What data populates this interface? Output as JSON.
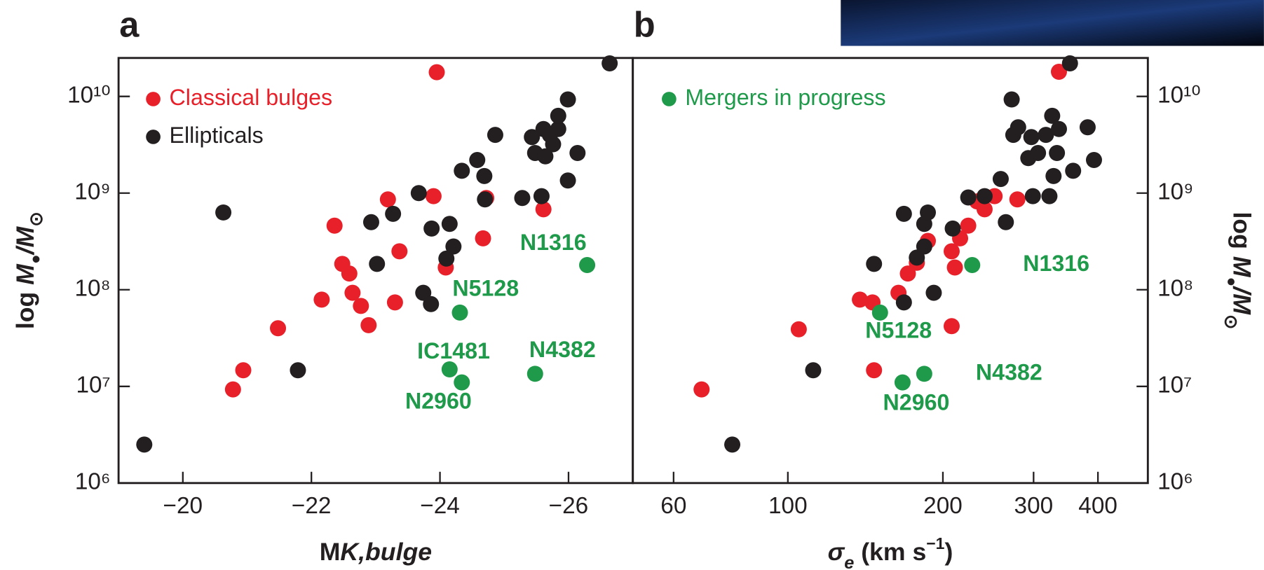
{
  "chart_data": [
    {
      "type": "scatter",
      "panel": "a",
      "xscale": "linear",
      "yscale": "log",
      "xlabel": [
        "M",
        "K,bulge"
      ],
      "ylabel": [
        "log ",
        "M",
        "●",
        "/M",
        "⊙"
      ],
      "xlim": [
        -19,
        -27
      ],
      "ylim": [
        1000000.0,
        25000000000.0
      ],
      "xticks": [
        {
          "value": -20,
          "label": "−20"
        },
        {
          "value": -22,
          "label": "−22"
        },
        {
          "value": -24,
          "label": "−24"
        },
        {
          "value": -26,
          "label": "−26"
        }
      ],
      "yticks": [
        {
          "value": 1000000.0,
          "label": "10⁶"
        },
        {
          "value": 10000000.0,
          "label": "10⁷"
        },
        {
          "value": 100000000.0,
          "label": "10⁸"
        },
        {
          "value": 1000000000.0,
          "label": "10⁹"
        },
        {
          "value": 10000000000.0,
          "label": "10¹⁰"
        }
      ],
      "series": [
        {
          "name": "Classical bulges",
          "color": "#e8202a",
          "x": [
            -23.95,
            -23.9,
            -23.19,
            -22.36,
            -23.37,
            -24.67,
            -22.48,
            -22.59,
            -22.64,
            -22.77,
            -22.16,
            -23.3,
            -22.89,
            -21.48,
            -24.09,
            -20.94,
            -20.78,
            -25.61,
            -24.72
          ],
          "y": [
            17800000000.0,
            930000000.0,
            860000000.0,
            460000000.0,
            250000000.0,
            340000000.0,
            185000000.0,
            147000000.0,
            93000000.0,
            68000000.0,
            79000000.0,
            74000000.0,
            43000000.0,
            40000000.0,
            170000000.0,
            14700000.0,
            9300000.0,
            680000000.0,
            890000000.0
          ]
        },
        {
          "name": "Ellipticals",
          "color": "#231f20",
          "x": [
            -19.4,
            -20.63,
            -21.79,
            -22.93,
            -23.27,
            -23.02,
            -23.67,
            -23.74,
            -23.86,
            -23.87,
            -24.15,
            -24.1,
            -24.21,
            -24.34,
            -24.58,
            -24.69,
            -24.7,
            -24.86,
            -25.28,
            -25.43,
            -25.61,
            -25.48,
            -25.71,
            -25.64,
            -25.84,
            -25.76,
            -25.58,
            -25.84,
            -25.99,
            -25.99,
            -26.14,
            -26.64
          ],
          "y": [
            2500000.0,
            630000000.0,
            14700000.0,
            500000000.0,
            610000000.0,
            185000000.0,
            1000000000.0,
            93000000.0,
            71000000.0,
            430000000.0,
            480000000.0,
            210000000.0,
            280000000.0,
            1700000000.0,
            2200000000.0,
            1500000000.0,
            860000000.0,
            4000000000.0,
            890000000.0,
            3800000000.0,
            4600000000.0,
            2600000000.0,
            4000000000.0,
            2400000000.0,
            4600000000.0,
            3200000000.0,
            930000000.0,
            6300000000.0,
            9300000000.0,
            1350000000.0,
            2600000000.0,
            22000000000.0
          ]
        },
        {
          "color": "#1f9a4a",
          "labels": [
            "N5128",
            "IC1481",
            "N2960",
            "N4382",
            "N1316"
          ],
          "x": [
            -24.31,
            -24.15,
            -24.34,
            -25.48,
            -26.29
          ],
          "y": [
            58000000.0,
            15000000.0,
            11000000.0,
            13500000.0,
            180000000.0
          ]
        }
      ]
    },
    {
      "type": "scatter",
      "panel": "b",
      "xscale": "log",
      "yscale": "log",
      "xlabel": [
        "σ",
        "e",
        " (km s",
        "−1",
        ")"
      ],
      "ylabel": [
        "log ",
        "M",
        "●",
        "/M",
        "⊙"
      ],
      "xlim": [
        50,
        500
      ],
      "ylim": [
        1000000.0,
        25000000000.0
      ],
      "xticks": [
        60,
        100,
        200,
        300,
        400
      ],
      "yticks": [
        {
          "value": 1000000.0,
          "label": "10⁶"
        },
        {
          "value": 10000000.0,
          "label": "10⁷"
        },
        {
          "value": 100000000.0,
          "label": "10⁸"
        },
        {
          "value": 1000000000.0,
          "label": "10⁹"
        },
        {
          "value": 10000000000.0,
          "label": "10¹⁰"
        }
      ],
      "series": [
        {
          "color": "#e8202a",
          "x": [
            68,
            105,
            138,
            146,
            147,
            164,
            171,
            178,
            187,
            208,
            211,
            208,
            216,
            224,
            233,
            241,
            252,
            279,
            336
          ],
          "y": [
            9300000.0,
            39000000.0,
            79000000.0,
            74000000.0,
            14700000.0,
            93000000.0,
            147000000.0,
            190000000.0,
            320000000.0,
            250000000.0,
            170000000.0,
            42000000.0,
            340000000.0,
            460000000.0,
            820000000.0,
            680000000.0,
            930000000.0,
            860000000.0,
            18000000000.0
          ]
        },
        {
          "color": "#231f20",
          "x": [
            78,
            112,
            147,
            168,
            168,
            178,
            184,
            184,
            187,
            192,
            209,
            224,
            241,
            259,
            265,
            272,
            274,
            280,
            293,
            297,
            299,
            306,
            317,
            322,
            326,
            328,
            333,
            336,
            353,
            358,
            382,
            393
          ],
          "y": [
            2500000.0,
            14700000.0,
            185000000.0,
            74000000.0,
            610000000.0,
            215000000.0,
            280000000.0,
            480000000.0,
            630000000.0,
            93000000.0,
            430000000.0,
            900000000.0,
            930000000.0,
            1400000000.0,
            500000000.0,
            9300000000.0,
            4000000000.0,
            4800000000.0,
            2300000000.0,
            3800000000.0,
            930000000.0,
            2600000000.0,
            4000000000.0,
            930000000.0,
            6300000000.0,
            1500000000.0,
            2600000000.0,
            4600000000.0,
            22000000000.0,
            1700000000.0,
            4800000000.0,
            2200000000.0
          ]
        },
        {
          "name": "Mergers in progress",
          "color": "#1f9a4a",
          "labels": [
            "N1316",
            "N5128",
            "N2960",
            "N4382"
          ],
          "x": [
            228,
            151,
            167,
            184
          ],
          "y": [
            180000000.0,
            58000000.0,
            11000000.0,
            13500000.0
          ]
        }
      ]
    }
  ]
}
